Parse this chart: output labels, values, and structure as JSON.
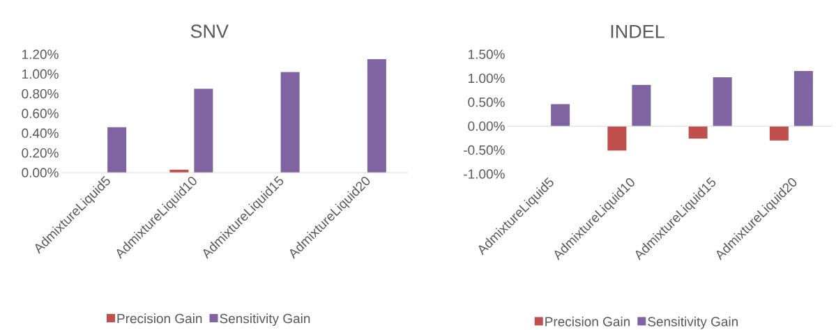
{
  "chart_data": [
    {
      "type": "bar",
      "title": "SNV",
      "categories": [
        "AdmixtureLiquid5",
        "AdmixtureLiquid10",
        "AdmixtureLiquid15",
        "AdmixtureLiquid20"
      ],
      "series": [
        {
          "name": "Precision Gain",
          "color": "#c0504d",
          "values": [
            0,
            0.03,
            0,
            0
          ]
        },
        {
          "name": "Sensitivity Gain",
          "color": "#8064a2",
          "values": [
            0.46,
            0.85,
            1.02,
            1.15
          ]
        }
      ],
      "ylim": [
        0,
        1.2
      ],
      "yticks": [
        {
          "value": 0,
          "label": "0.00%"
        },
        {
          "value": 0.2,
          "label": "0.20%"
        },
        {
          "value": 0.4,
          "label": "0.40%"
        },
        {
          "value": 0.6,
          "label": "0.60%"
        },
        {
          "value": 0.8,
          "label": "0.80%"
        },
        {
          "value": 1.0,
          "label": "1.00%"
        },
        {
          "value": 1.2,
          "label": "1.20%"
        }
      ],
      "legend": "bottom"
    },
    {
      "type": "bar",
      "title": "INDEL",
      "categories": [
        "AdmixtureLiquid5",
        "AdmixtureLiquid10",
        "AdmixtureLiquid15",
        "AdmixtureLiquid20"
      ],
      "series": [
        {
          "name": "Precision Gain",
          "color": "#c0504d",
          "values": [
            0,
            -0.51,
            -0.26,
            -0.3
          ]
        },
        {
          "name": "Sensitivity Gain",
          "color": "#8064a2",
          "values": [
            0.46,
            0.86,
            1.02,
            1.15
          ]
        }
      ],
      "ylim": [
        -1.0,
        1.5
      ],
      "yticks": [
        {
          "value": -1.0,
          "label": "-1.00%"
        },
        {
          "value": -0.5,
          "label": "-0.50%"
        },
        {
          "value": 0,
          "label": "0.00%"
        },
        {
          "value": 0.5,
          "label": "0.50%"
        },
        {
          "value": 1.0,
          "label": "1.00%"
        },
        {
          "value": 1.5,
          "label": "1.50%"
        }
      ],
      "legend": "bottom"
    }
  ]
}
